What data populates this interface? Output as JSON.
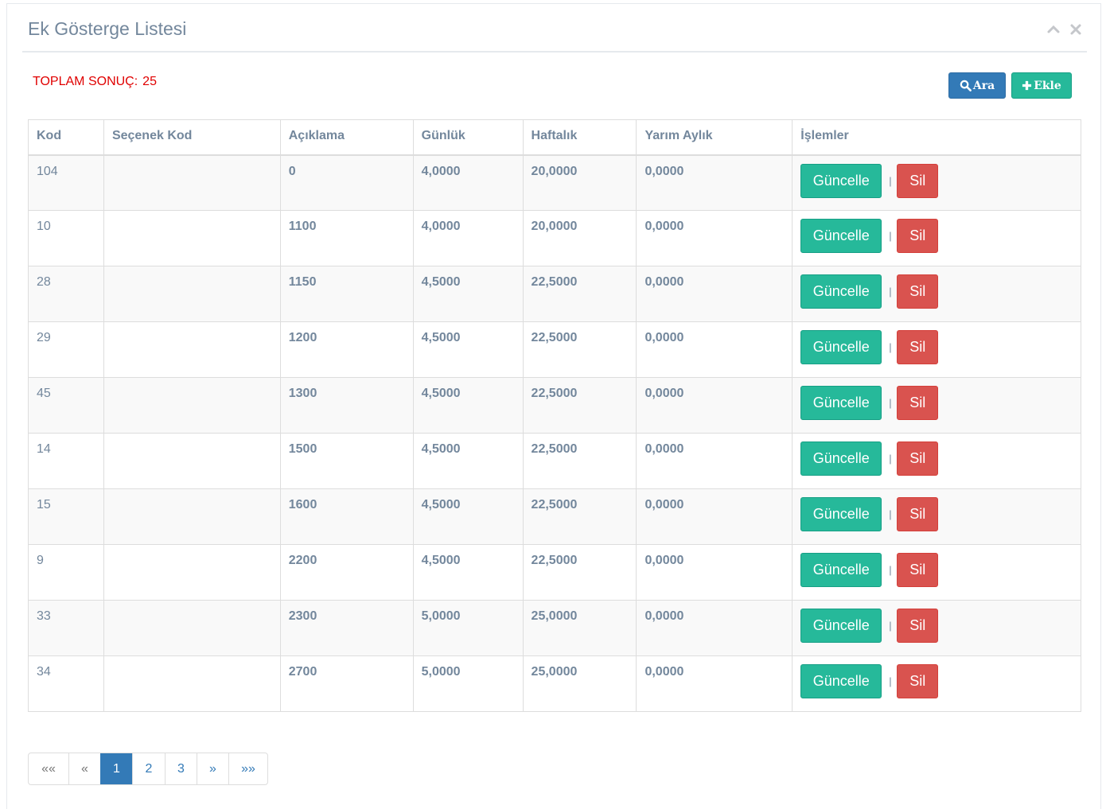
{
  "panel": {
    "title": "Ek Gösterge Listesi",
    "collapse_icon": "chevron-up-icon",
    "close_icon": "close-icon"
  },
  "summary": {
    "total_label": "TOPLAM SONUÇ:",
    "total_value": "25"
  },
  "toolbar": {
    "search_label": "Ara",
    "search_icon": "search-icon",
    "add_label": "Ekle",
    "add_icon": "plus-icon"
  },
  "table": {
    "headers": [
      "Kod",
      "Seçenek Kod",
      "Açıklama",
      "Günlük",
      "Haftalık",
      "Yarım Aylık",
      "İşlemler"
    ],
    "rows": [
      {
        "kod": "104",
        "secenek": "",
        "aciklama": "0",
        "gunluk": "4,0000",
        "haftalik": "20,0000",
        "yarim": "0,0000"
      },
      {
        "kod": "10",
        "secenek": "",
        "aciklama": "1100",
        "gunluk": "4,0000",
        "haftalik": "20,0000",
        "yarim": "0,0000"
      },
      {
        "kod": "28",
        "secenek": "",
        "aciklama": "1150",
        "gunluk": "4,5000",
        "haftalik": "22,5000",
        "yarim": "0,0000"
      },
      {
        "kod": "29",
        "secenek": "",
        "aciklama": "1200",
        "gunluk": "4,5000",
        "haftalik": "22,5000",
        "yarim": "0,0000"
      },
      {
        "kod": "45",
        "secenek": "",
        "aciklama": "1300",
        "gunluk": "4,5000",
        "haftalik": "22,5000",
        "yarim": "0,0000"
      },
      {
        "kod": "14",
        "secenek": "",
        "aciklama": "1500",
        "gunluk": "4,5000",
        "haftalik": "22,5000",
        "yarim": "0,0000"
      },
      {
        "kod": "15",
        "secenek": "",
        "aciklama": "1600",
        "gunluk": "4,5000",
        "haftalik": "22,5000",
        "yarim": "0,0000"
      },
      {
        "kod": "9",
        "secenek": "",
        "aciklama": "2200",
        "gunluk": "4,5000",
        "haftalik": "22,5000",
        "yarim": "0,0000"
      },
      {
        "kod": "33",
        "secenek": "",
        "aciklama": "2300",
        "gunluk": "5,0000",
        "haftalik": "25,0000",
        "yarim": "0,0000"
      },
      {
        "kod": "34",
        "secenek": "",
        "aciklama": "2700",
        "gunluk": "5,0000",
        "haftalik": "25,0000",
        "yarim": "0,0000"
      }
    ],
    "update_label": "Güncelle",
    "separator": "|",
    "delete_label": "Sil"
  },
  "pagination": {
    "first": "««",
    "prev": "«",
    "pages": [
      "1",
      "2",
      "3"
    ],
    "current": "1",
    "next": "»",
    "last": "»»"
  },
  "colors": {
    "primary": "#337ab7",
    "success": "#26b99a",
    "danger": "#d9534f",
    "total_text": "#e00000",
    "text": "#73879c"
  }
}
